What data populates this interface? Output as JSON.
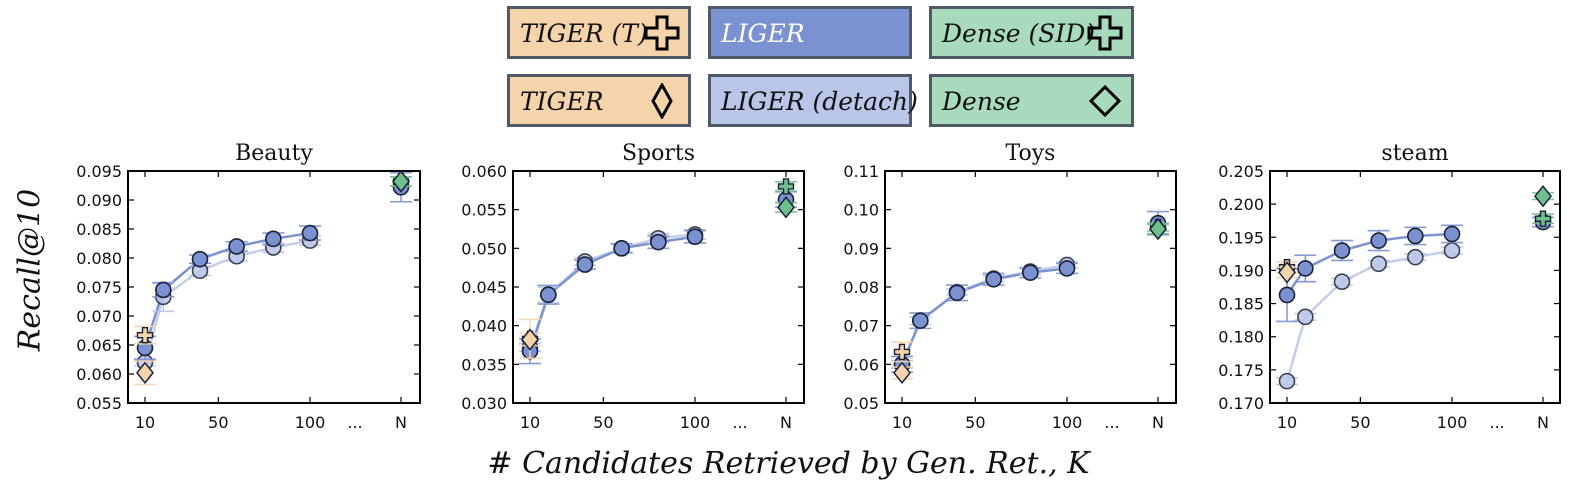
{
  "legend": {
    "items": [
      {
        "label": "TIGER (T)",
        "color": "#f5d3ab",
        "icon": "plus-icon"
      },
      {
        "label": "LIGER",
        "color": "#7b92d2",
        "icon": "none"
      },
      {
        "label": "Dense (SID)",
        "color": "#a8dbbe",
        "icon": "plus-icon"
      },
      {
        "label": "TIGER",
        "color": "#f5d3ab",
        "icon": "diamond-icon"
      },
      {
        "label": "LIGER (detach)",
        "color": "#bac6e8",
        "icon": "none"
      },
      {
        "label": "Dense",
        "color": "#a8dbbe",
        "icon": "diamond-icon"
      }
    ]
  },
  "axes": {
    "ylabel": "Recall@10",
    "xlabel": "# Candidates Retrieved by Gen. Ret., K"
  },
  "chart_data": [
    {
      "type": "scatter",
      "title": "Beauty",
      "ylim": [
        0.055,
        0.095
      ],
      "yticks": [
        "0.055",
        "0.060",
        "0.065",
        "0.070",
        "0.075",
        "0.080",
        "0.085",
        "0.090",
        "0.095"
      ],
      "xtick_labels": [
        "10",
        "50",
        "100",
        "...",
        "N"
      ],
      "series": [
        {
          "name": "LIGER (detach)",
          "x": [
            10,
            20,
            40,
            60,
            80,
            100
          ],
          "y": [
            0.062,
            0.0733,
            0.0778,
            0.0803,
            0.0818,
            0.083
          ],
          "err": [
            0.0006,
            0.0025,
            0.0008,
            0.0008,
            0.0008,
            0.0008
          ]
        },
        {
          "name": "LIGER",
          "x": [
            10,
            20,
            40,
            60,
            80,
            100
          ],
          "y": [
            0.0645,
            0.0745,
            0.0798,
            0.082,
            0.0833,
            0.0843
          ],
          "err": [
            0.002,
            0.0012,
            0.0007,
            0.0008,
            0.001,
            0.0012
          ]
        },
        {
          "name": "LIGER N",
          "x": [
            "N"
          ],
          "y": [
            0.0922
          ],
          "err": [
            0.0025
          ]
        },
        {
          "name": "TIGER (T)",
          "x": [
            10
          ],
          "y": [
            0.0667
          ],
          "err": [
            0.0015
          ]
        },
        {
          "name": "TIGER",
          "x": [
            10
          ],
          "y": [
            0.0602
          ],
          "err": [
            0.002
          ]
        },
        {
          "name": "Dense (SID)",
          "x": [
            "N"
          ],
          "y": [
            0.0932
          ],
          "err": [
            0.0008
          ]
        },
        {
          "name": "Dense",
          "x": [
            "N"
          ],
          "y": [
            0.0932
          ],
          "err": [
            0.0008
          ]
        }
      ]
    },
    {
      "type": "scatter",
      "title": "Sports",
      "ylim": [
        0.03,
        0.06
      ],
      "yticks": [
        "0.030",
        "0.035",
        "0.040",
        "0.045",
        "0.050",
        "0.055",
        "0.060"
      ],
      "xtick_labels": [
        "10",
        "50",
        "100",
        "...",
        "N"
      ],
      "series": [
        {
          "name": "LIGER (detach)",
          "x": [
            10,
            20,
            40,
            60,
            80,
            100
          ],
          "y": [
            0.0372,
            0.044,
            0.0483,
            0.05,
            0.0513,
            0.0518
          ],
          "err": [
            0.0005,
            0.001,
            0.0005,
            0.0005,
            0.0006,
            0.0006
          ]
        },
        {
          "name": "LIGER",
          "x": [
            10,
            20,
            40,
            60,
            80,
            100
          ],
          "y": [
            0.0367,
            0.044,
            0.0479,
            0.05,
            0.0508,
            0.0515
          ],
          "err": [
            0.0016,
            0.0012,
            0.0006,
            0.0006,
            0.0008,
            0.0008
          ]
        },
        {
          "name": "LIGER N",
          "x": [
            "N"
          ],
          "y": [
            0.0563
          ],
          "err": [
            0.001
          ]
        },
        {
          "name": "TIGER (T)",
          "x": [
            10
          ],
          "y": [
            0.0383
          ],
          "err": [
            0.0025
          ]
        },
        {
          "name": "TIGER",
          "x": [
            10
          ],
          "y": [
            0.0382
          ],
          "err": [
            0.0008
          ]
        },
        {
          "name": "Dense (SID)",
          "x": [
            "N"
          ],
          "y": [
            0.058
          ],
          "err": [
            0.0006
          ]
        },
        {
          "name": "Dense",
          "x": [
            "N"
          ],
          "y": [
            0.0553
          ],
          "err": [
            0.0006
          ]
        }
      ]
    },
    {
      "type": "scatter",
      "title": "Toys",
      "ylim": [
        0.05,
        0.11
      ],
      "yticks": [
        "0.05",
        "0.06",
        "0.07",
        "0.08",
        "0.09",
        "0.10",
        "0.11"
      ],
      "xtick_labels": [
        "10",
        "50",
        "100",
        "...",
        "N"
      ],
      "series": [
        {
          "name": "LIGER (detach)",
          "x": [
            10,
            20,
            40,
            60,
            80,
            100
          ],
          "y": [
            0.06,
            0.0713,
            0.0787,
            0.0822,
            0.084,
            0.0857
          ],
          "err": [
            0.001,
            0.001,
            0.0008,
            0.0008,
            0.0008,
            0.0008
          ]
        },
        {
          "name": "LIGER",
          "x": [
            10,
            20,
            40,
            60,
            80,
            100
          ],
          "y": [
            0.06,
            0.0713,
            0.0785,
            0.082,
            0.0837,
            0.0848
          ],
          "err": [
            0.002,
            0.002,
            0.002,
            0.0015,
            0.0013,
            0.0013
          ]
        },
        {
          "name": "LIGER N",
          "x": [
            "N"
          ],
          "y": [
            0.0965
          ],
          "err": [
            0.003
          ]
        },
        {
          "name": "TIGER (T)",
          "x": [
            10
          ],
          "y": [
            0.0632
          ],
          "err": [
            0.0025
          ]
        },
        {
          "name": "TIGER",
          "x": [
            10
          ],
          "y": [
            0.0578
          ],
          "err": [
            0.0015
          ]
        },
        {
          "name": "Dense (SID)",
          "x": [
            "N"
          ],
          "y": [
            0.0955
          ],
          "err": [
            0.001
          ]
        },
        {
          "name": "Dense",
          "x": [
            "N"
          ],
          "y": [
            0.095
          ],
          "err": [
            0.0012
          ]
        }
      ]
    },
    {
      "type": "scatter",
      "title": "steam",
      "ylim": [
        0.17,
        0.205
      ],
      "yticks": [
        "0.170",
        "0.175",
        "0.180",
        "0.185",
        "0.190",
        "0.195",
        "0.200",
        "0.205"
      ],
      "xtick_labels": [
        "10",
        "50",
        "100",
        "...",
        "N"
      ],
      "series": [
        {
          "name": "LIGER (detach)",
          "x": [
            10,
            20,
            40,
            60,
            80,
            100
          ],
          "y": [
            0.1733,
            0.183,
            0.1883,
            0.191,
            0.192,
            0.193
          ],
          "err": [
            0.0005,
            0.0005,
            0.0005,
            0.0005,
            0.0005,
            0.0005
          ]
        },
        {
          "name": "LIGER",
          "x": [
            10,
            20,
            40,
            60,
            80,
            100
          ],
          "y": [
            0.1863,
            0.1903,
            0.193,
            0.1945,
            0.1952,
            0.1955
          ],
          "err": [
            0.004,
            0.002,
            0.0015,
            0.0015,
            0.0013,
            0.0013
          ]
        },
        {
          "name": "LIGER N",
          "x": [
            "N"
          ],
          "y": [
            0.1973
          ],
          "err": [
            0.0007
          ]
        },
        {
          "name": "TIGER (T)",
          "x": [
            10
          ],
          "y": [
            0.1905
          ],
          "err": [
            0.0008
          ]
        },
        {
          "name": "TIGER",
          "x": [
            10
          ],
          "y": [
            0.1897
          ],
          "err": [
            0.0008
          ]
        },
        {
          "name": "Dense (SID)",
          "x": [
            "N"
          ],
          "y": [
            0.1978
          ],
          "err": [
            0.0007
          ]
        },
        {
          "name": "Dense",
          "x": [
            "N"
          ],
          "y": [
            0.2012
          ],
          "err": [
            0.0005
          ]
        }
      ]
    }
  ],
  "colors": {
    "liger": "#7b92d2",
    "liger_detach": "#bac6e8",
    "tiger": "#f5d3ab",
    "dense": "#6fbf8e",
    "dense_fill": "#a8dbbe",
    "edge": "#1a2237"
  }
}
